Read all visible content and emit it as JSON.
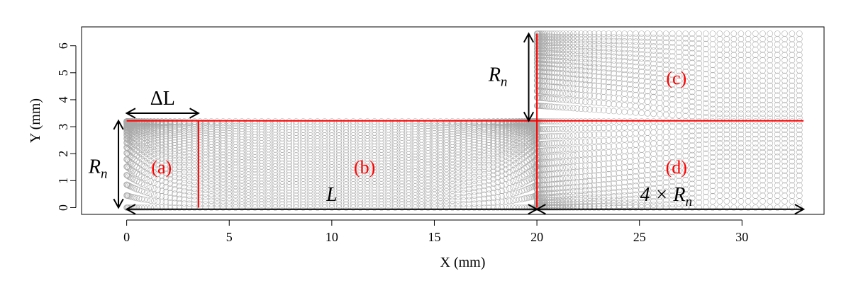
{
  "chart_data": {
    "type": "scatter",
    "title": "",
    "xlabel": "X (mm)",
    "ylabel": "Y (mm)",
    "xlim": [
      -2.2,
      34.0
    ],
    "ylim": [
      -0.25,
      6.7
    ],
    "x_ticks": [
      0,
      5,
      10,
      15,
      20,
      25,
      30
    ],
    "y_ticks": [
      0,
      1,
      2,
      3,
      4,
      5,
      6
    ],
    "grid": false,
    "marker": "open-circle",
    "point_color": "#a9a9a9",
    "accent_color": "#ff0000",
    "domain": {
      "nozzle_radius_Rn": 3.2,
      "nozzle_length_L": 20.0,
      "delta_L": 3.5,
      "outer_height": 6.45,
      "outer_x_max": 32.8
    },
    "boundaries": {
      "horizontal_y": 3.22,
      "horizontal_x_range": [
        0,
        33.0
      ],
      "nozzle_exit_x": 20.0,
      "nozzle_exit_y_range": [
        0,
        6.45
      ],
      "delta_L_x": 3.5,
      "delta_L_y_range": [
        0,
        3.22
      ]
    },
    "regions": [
      {
        "label": "(a)",
        "x": 1.7,
        "y": 1.5
      },
      {
        "label": "(b)",
        "x": 11.6,
        "y": 1.5
      },
      {
        "label": "(c)",
        "x": 26.8,
        "y": 4.8
      },
      {
        "label": "(d)",
        "x": 26.8,
        "y": 1.5
      }
    ],
    "dimensions": [
      {
        "name": "delta-L",
        "label": "ΔL",
        "from": [
          0,
          3.5
        ],
        "to": [
          3.5,
          3.5
        ],
        "orientation": "horizontal"
      },
      {
        "name": "R-n-left",
        "label_main": "R",
        "label_sub": "n",
        "from": [
          -0.4,
          0
        ],
        "to": [
          -0.4,
          3.22
        ],
        "orientation": "vertical"
      },
      {
        "name": "L",
        "label": "L",
        "from": [
          0,
          -0.06
        ],
        "to": [
          20.0,
          -0.06
        ],
        "orientation": "horizontal"
      },
      {
        "name": "R-n-top",
        "label_main": "R",
        "label_sub": "n",
        "from": [
          19.6,
          3.22
        ],
        "to": [
          19.6,
          6.45
        ],
        "orientation": "vertical"
      },
      {
        "name": "4-times-R-n",
        "label_main": "4 × R",
        "label_sub": "n",
        "from": [
          20.0,
          -0.06
        ],
        "to": [
          33.0,
          -0.06
        ],
        "orientation": "horizontal"
      }
    ]
  }
}
